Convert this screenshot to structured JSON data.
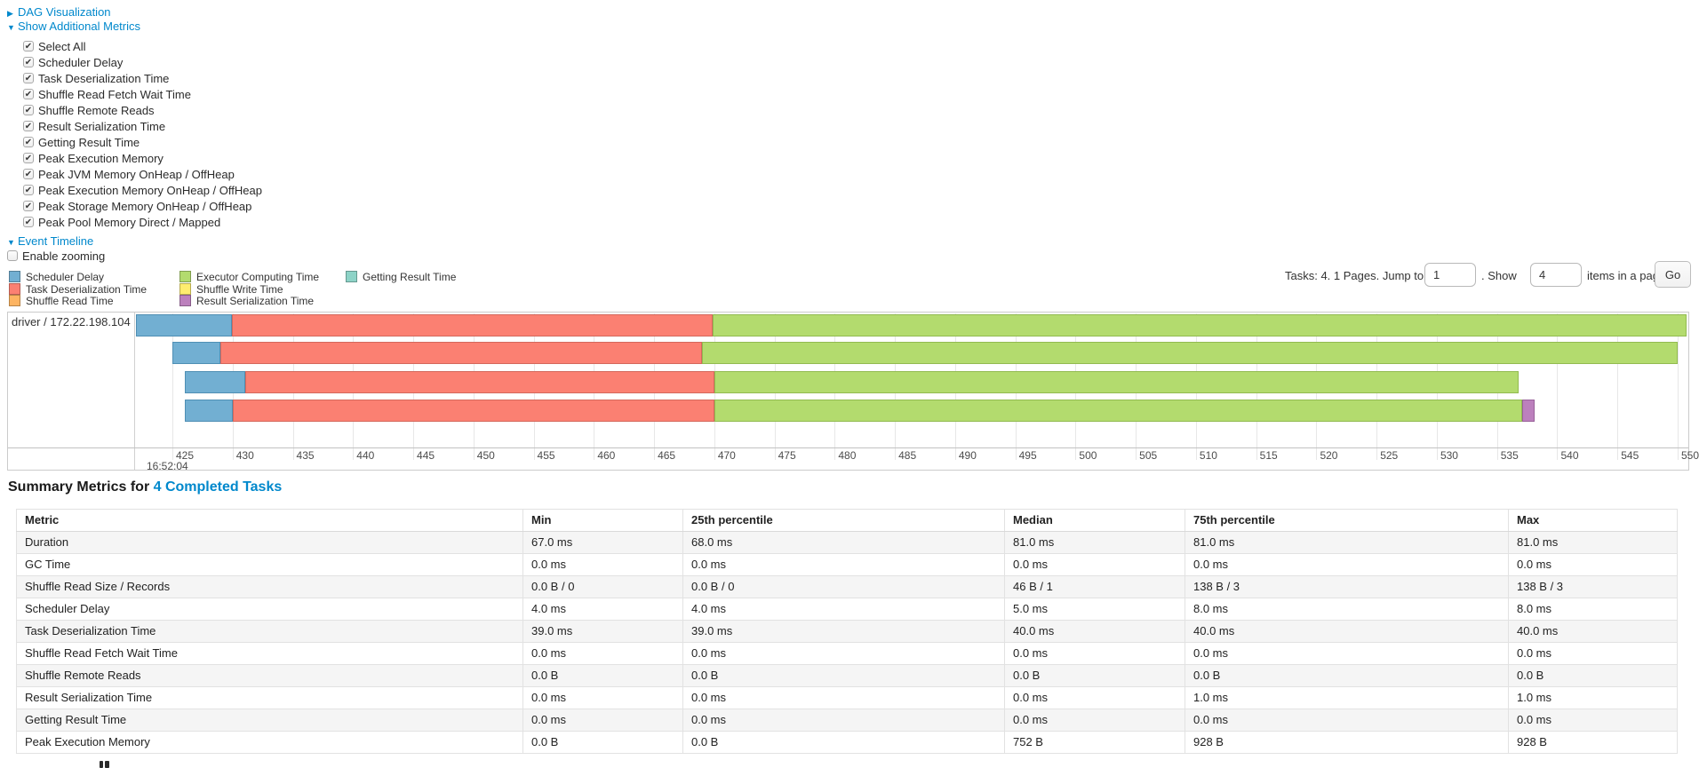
{
  "toggles": {
    "dag": {
      "label": "DAG Visualization",
      "expanded": false
    },
    "metrics": {
      "label": "Show Additional Metrics",
      "expanded": true
    },
    "timeline": {
      "label": "Event Timeline",
      "expanded": true
    }
  },
  "metrics_checkboxes": [
    {
      "label": "Select All",
      "checked": true
    },
    {
      "label": "Scheduler Delay",
      "checked": true
    },
    {
      "label": "Task Deserialization Time",
      "checked": true
    },
    {
      "label": "Shuffle Read Fetch Wait Time",
      "checked": true
    },
    {
      "label": "Shuffle Remote Reads",
      "checked": true
    },
    {
      "label": "Result Serialization Time",
      "checked": true
    },
    {
      "label": "Getting Result Time",
      "checked": true
    },
    {
      "label": "Peak Execution Memory",
      "checked": true
    },
    {
      "label": "Peak JVM Memory OnHeap / OffHeap",
      "checked": true
    },
    {
      "label": "Peak Execution Memory OnHeap / OffHeap",
      "checked": true
    },
    {
      "label": "Peak Storage Memory OnHeap / OffHeap",
      "checked": true
    },
    {
      "label": "Peak Pool Memory Direct / Mapped",
      "checked": true
    }
  ],
  "enable_zooming": {
    "label": "Enable zooming",
    "checked": false
  },
  "colors": {
    "scheduler_delay": "#72AFD2",
    "scheduler_delay_border": "#4f8fb4",
    "task_deserialization": "#FB8072",
    "task_deserialization_border": "#d4685c",
    "shuffle_read": "#FDB462",
    "shuffle_read_border": "#d79449",
    "executor_computing": "#B3DB6E",
    "executor_computing_border": "#92bb50",
    "shuffle_write": "#FFED6F",
    "shuffle_write_border": "#d8c657",
    "result_serialization": "#BC80BD",
    "result_serialization_border": "#99619a",
    "getting_result": "#8DD3C7",
    "getting_result_border": "#6cb3a7",
    "link": "#0088cc"
  },
  "legend": {
    "columns": [
      [
        {
          "label": "Scheduler Delay",
          "color_key": "scheduler_delay"
        },
        {
          "label": "Task Deserialization Time",
          "color_key": "task_deserialization"
        },
        {
          "label": "Shuffle Read Time",
          "color_key": "shuffle_read"
        }
      ],
      [
        {
          "label": "Executor Computing Time",
          "color_key": "executor_computing"
        },
        {
          "label": "Shuffle Write Time",
          "color_key": "shuffle_write"
        },
        {
          "label": "Result Serialization Time",
          "color_key": "result_serialization"
        }
      ],
      [
        {
          "label": "Getting Result Time",
          "color_key": "getting_result"
        }
      ]
    ]
  },
  "pagination": {
    "tasks_text": "Tasks: 4. 1 Pages. Jump to",
    "jump_value": "1",
    "show_text": ". Show",
    "show_value": "4",
    "items_text": "items in a page.",
    "go_label": "Go"
  },
  "timeline": {
    "executor_label": "driver / 172.22.198.104",
    "axis": {
      "ticks": [
        425,
        430,
        435,
        440,
        445,
        450,
        455,
        460,
        465,
        470,
        475,
        480,
        485,
        490,
        495,
        500,
        505,
        510,
        515,
        520,
        525,
        530,
        535,
        540,
        545,
        550
      ],
      "major_label": "16:52:04"
    },
    "tasks": [
      {
        "name": "task-bar-0",
        "segments": [
          {
            "metric": "scheduler-delay",
            "color_key": "scheduler_delay",
            "from_pct": 0.06,
            "to_pct": 6.23,
            "ms": 8
          },
          {
            "metric": "task-deserialization",
            "color_key": "task_deserialization",
            "from_pct": 6.23,
            "to_pct": 37.2,
            "ms": 40
          },
          {
            "metric": "executor-computing",
            "color_key": "executor_computing",
            "from_pct": 37.2,
            "to_pct": 99.9,
            "ms": 81
          }
        ]
      },
      {
        "name": "task-bar-1",
        "segments": [
          {
            "metric": "scheduler-delay",
            "color_key": "scheduler_delay",
            "from_pct": 2.4,
            "to_pct": 5.49,
            "ms": 4
          },
          {
            "metric": "task-deserialization",
            "color_key": "task_deserialization",
            "from_pct": 5.49,
            "to_pct": 36.5,
            "ms": 40
          },
          {
            "metric": "executor-computing",
            "color_key": "executor_computing",
            "from_pct": 36.5,
            "to_pct": 99.3,
            "ms": 81
          }
        ]
      },
      {
        "name": "task-bar-2",
        "segments": [
          {
            "metric": "scheduler-delay",
            "color_key": "scheduler_delay",
            "from_pct": 3.2,
            "to_pct": 7.09,
            "ms": 5
          },
          {
            "metric": "task-deserialization",
            "color_key": "task_deserialization",
            "from_pct": 7.09,
            "to_pct": 37.3,
            "ms": 39
          },
          {
            "metric": "executor-computing",
            "color_key": "executor_computing",
            "from_pct": 37.3,
            "to_pct": 89.1,
            "ms": 67
          }
        ]
      },
      {
        "name": "task-bar-3",
        "segments": [
          {
            "metric": "scheduler-delay",
            "color_key": "scheduler_delay",
            "from_pct": 3.2,
            "to_pct": 6.29,
            "ms": 4
          },
          {
            "metric": "task-deserialization",
            "color_key": "task_deserialization",
            "from_pct": 6.29,
            "to_pct": 37.3,
            "ms": 40
          },
          {
            "metric": "executor-computing",
            "color_key": "executor_computing",
            "from_pct": 37.3,
            "to_pct": 89.3,
            "ms": 68
          },
          {
            "metric": "result-serialization",
            "color_key": "result_serialization",
            "from_pct": 89.3,
            "to_pct": 90.1,
            "ms": 1
          }
        ]
      }
    ]
  },
  "summary": {
    "heading_prefix": "Summary Metrics for ",
    "heading_link": "4 Completed Tasks",
    "table": {
      "headers": [
        "Metric",
        "Min",
        "25th percentile",
        "Median",
        "75th percentile",
        "Max"
      ],
      "rows": [
        [
          "Duration",
          "67.0 ms",
          "68.0 ms",
          "81.0 ms",
          "81.0 ms",
          "81.0 ms"
        ],
        [
          "GC Time",
          "0.0 ms",
          "0.0 ms",
          "0.0 ms",
          "0.0 ms",
          "0.0 ms"
        ],
        [
          "Shuffle Read Size / Records",
          "0.0 B / 0",
          "0.0 B / 0",
          "46 B / 1",
          "138 B / 3",
          "138 B / 3"
        ],
        [
          "Scheduler Delay",
          "4.0 ms",
          "4.0 ms",
          "5.0 ms",
          "8.0 ms",
          "8.0 ms"
        ],
        [
          "Task Deserialization Time",
          "39.0 ms",
          "39.0 ms",
          "40.0 ms",
          "40.0 ms",
          "40.0 ms"
        ],
        [
          "Shuffle Read Fetch Wait Time",
          "0.0 ms",
          "0.0 ms",
          "0.0 ms",
          "0.0 ms",
          "0.0 ms"
        ],
        [
          "Shuffle Remote Reads",
          "0.0 B",
          "0.0 B",
          "0.0 B",
          "0.0 B",
          "0.0 B"
        ],
        [
          "Result Serialization Time",
          "0.0 ms",
          "0.0 ms",
          "0.0 ms",
          "1.0 ms",
          "1.0 ms"
        ],
        [
          "Getting Result Time",
          "0.0 ms",
          "0.0 ms",
          "0.0 ms",
          "0.0 ms",
          "0.0 ms"
        ],
        [
          "Peak Execution Memory",
          "0.0 B",
          "0.0 B",
          "752 B",
          "928 B",
          "928 B"
        ]
      ]
    }
  }
}
